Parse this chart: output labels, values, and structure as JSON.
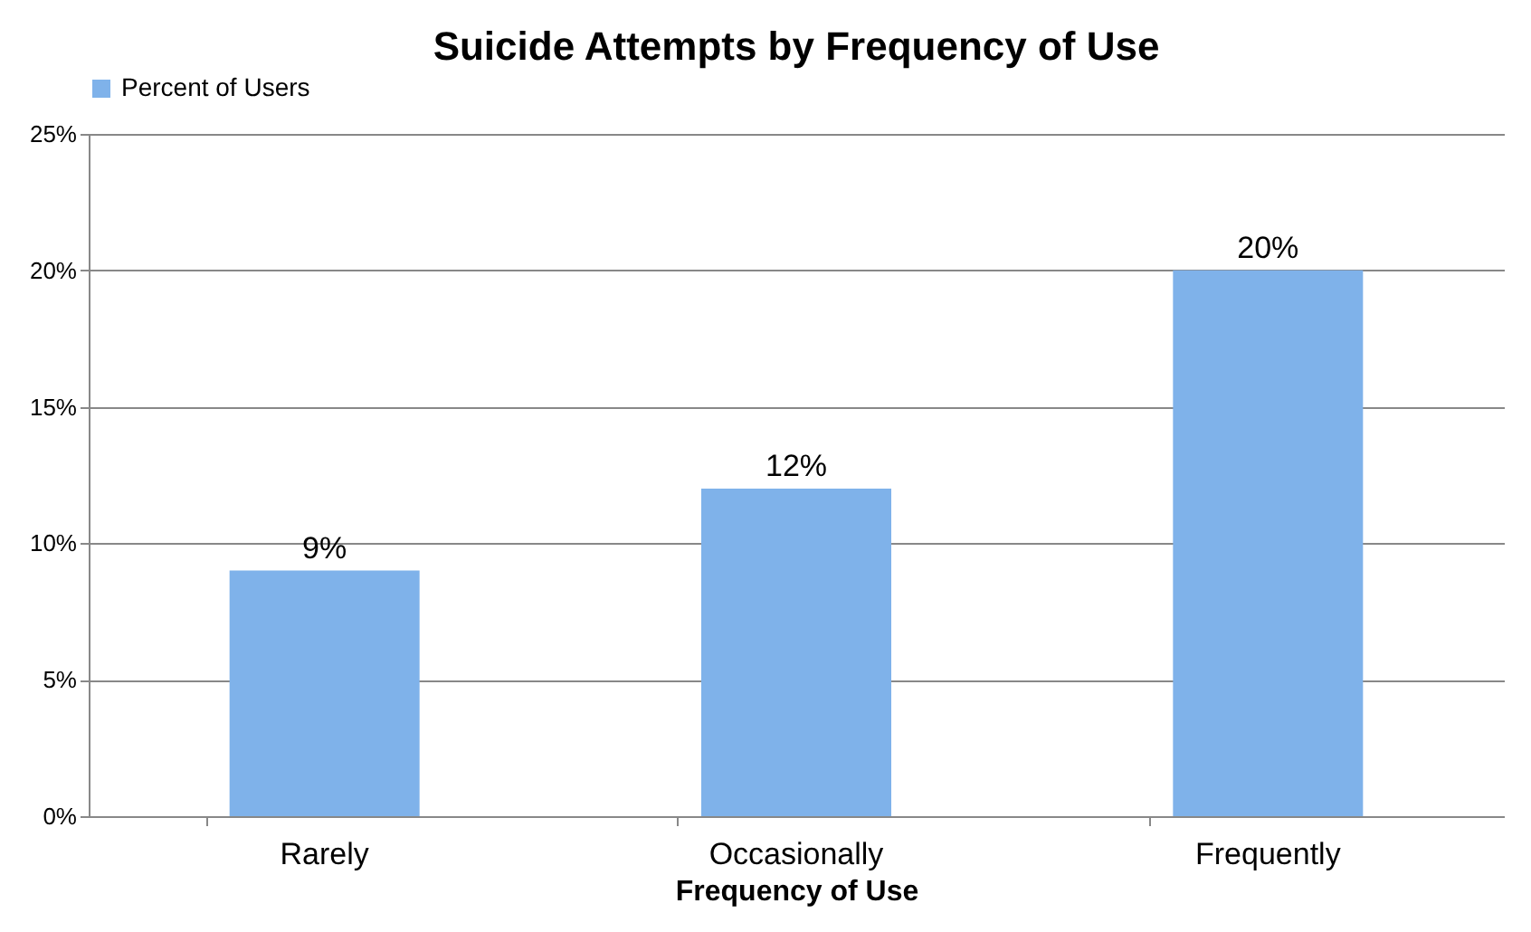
{
  "chart_data": {
    "type": "bar",
    "title": "Suicide Attempts by Frequency of Use",
    "xlabel": "Frequency of Use",
    "categories": [
      "Rarely",
      "Occasionally",
      "Frequently"
    ],
    "series": [
      {
        "name": "Percent of Users",
        "color": "#7fb2ea",
        "values": [
          9,
          12,
          20
        ],
        "value_labels": [
          "9%",
          "12%",
          "20%"
        ]
      }
    ],
    "ylim": [
      0,
      25
    ],
    "yticks": [
      {
        "value": 0,
        "label": "0%"
      },
      {
        "value": 5,
        "label": "5%"
      },
      {
        "value": 10,
        "label": "10%"
      },
      {
        "value": 15,
        "label": "15%"
      },
      {
        "value": 20,
        "label": "20%"
      },
      {
        "value": 25,
        "label": "25%"
      }
    ],
    "grid": "y",
    "legend": "top"
  }
}
